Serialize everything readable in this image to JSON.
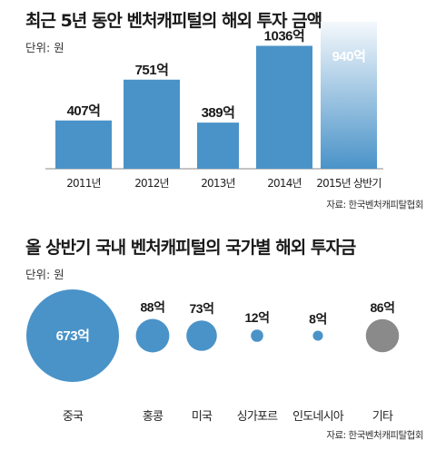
{
  "charts": {
    "top": {
      "title": "최근 5년 동안 벤처캐피털의 해외 투자 금액",
      "unit": "단위: 원",
      "source": "자료: 한국벤처캐피탈협회"
    },
    "bottom": {
      "title": "올 상반기 국내 벤처캐피털의 국가별 해외 투자금",
      "unit": "단위: 원",
      "source": "자료: 한국벤처캐피탈협회"
    }
  },
  "colors": {
    "bar": "#4a93c8",
    "highlight_top": "#f4f8fc",
    "highlight_bottom": "#4a93c8",
    "gray_bubble": "#8a8a8a"
  },
  "chart_data": [
    {
      "type": "bar",
      "title": "최근 5년 동안 벤처캐피털의 해외 투자 금액",
      "categories": [
        "2011년",
        "2012년",
        "2013년",
        "2014년",
        "2015년 상반기"
      ],
      "values": [
        407,
        751,
        389,
        1036,
        940
      ],
      "labels": [
        "407억",
        "751억",
        "389억",
        "1036억",
        "940억"
      ],
      "unit": "억 원",
      "highlight_index": 4,
      "ylim": [
        0,
        1300
      ],
      "grid": false,
      "legend": "none"
    },
    {
      "type": "bubble",
      "title": "올 상반기 국내 벤처캐피털의 국가별 해외 투자금",
      "categories": [
        "중국",
        "홍콩",
        "미국",
        "싱가포르",
        "인도네시아",
        "기타"
      ],
      "values": [
        673,
        88,
        73,
        12,
        8,
        86
      ],
      "labels": [
        "673억",
        "88억",
        "73억",
        "12억",
        "8억",
        "86억"
      ],
      "unit": "억 원",
      "grid": false,
      "legend": "none"
    }
  ]
}
